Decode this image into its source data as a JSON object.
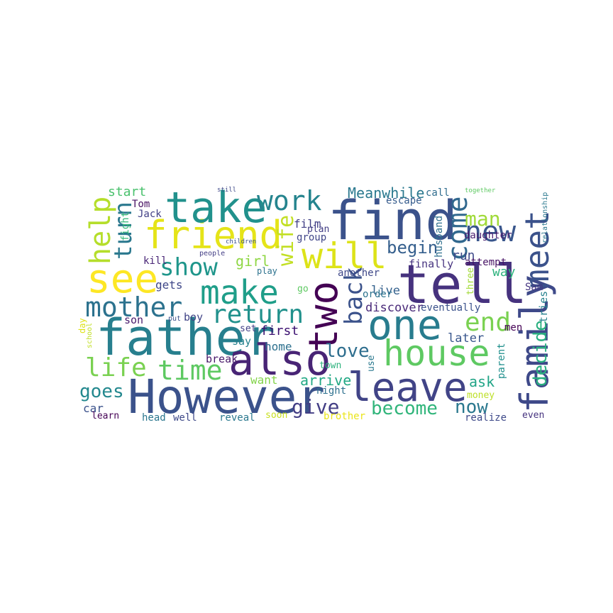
{
  "words": [
    {
      "text": "find",
      "color": "#3b528b"
    },
    {
      "text": "tell",
      "color": "#46327e"
    },
    {
      "text": "father",
      "color": "#277f8e"
    },
    {
      "text": "However",
      "color": "#3b528b"
    },
    {
      "text": "friend",
      "color": "#e5e419"
    },
    {
      "text": "take",
      "color": "#21918c"
    },
    {
      "text": "family",
      "color": "#3e4989"
    },
    {
      "text": "one",
      "color": "#287c8e"
    },
    {
      "text": "leave",
      "color": "#414487"
    },
    {
      "text": "also",
      "color": "#482475"
    },
    {
      "text": "house",
      "color": "#5ec962"
    },
    {
      "text": "two",
      "color": "#440154"
    },
    {
      "text": "see",
      "color": "#fde725"
    },
    {
      "text": "make",
      "color": "#1f9e89"
    },
    {
      "text": "will",
      "color": "#dde318"
    },
    {
      "text": "meet",
      "color": "#3b528b"
    },
    {
      "text": "mother",
      "color": "#2c728e"
    },
    {
      "text": "return",
      "color": "#21918c"
    },
    {
      "text": "help",
      "color": "#b5de2b"
    },
    {
      "text": "come",
      "color": "#31688e"
    },
    {
      "text": "new",
      "color": "#39568c"
    },
    {
      "text": "work",
      "color": "#25848e"
    },
    {
      "text": "turn",
      "color": "#2a788e"
    },
    {
      "text": "time",
      "color": "#5ec962"
    },
    {
      "text": "show",
      "color": "#1f968b"
    },
    {
      "text": "back",
      "color": "#3b528b"
    },
    {
      "text": "end",
      "color": "#7ad151"
    },
    {
      "text": "life",
      "color": "#7ad151"
    },
    {
      "text": "give",
      "color": "#433e85"
    },
    {
      "text": "love",
      "color": "#2e6e8e"
    },
    {
      "text": "decide",
      "color": "#29af7f"
    },
    {
      "text": "become",
      "color": "#31b57b"
    },
    {
      "text": "goes",
      "color": "#23888e"
    },
    {
      "text": "man",
      "color": "#a0da39"
    },
    {
      "text": "wife",
      "color": "#c2df23"
    },
    {
      "text": "begin",
      "color": "#355f8d"
    },
    {
      "text": "now",
      "color": "#2a788e"
    },
    {
      "text": "Meanwhile",
      "color": "#2a788e"
    },
    {
      "text": "girl",
      "color": "#8fd744"
    },
    {
      "text": "first",
      "color": "#3b0f70"
    },
    {
      "text": "arrive",
      "color": "#22a884"
    },
    {
      "text": "discover",
      "color": "#482878"
    },
    {
      "text": "start",
      "color": "#4ac16d"
    },
    {
      "text": "ask",
      "color": "#20a486"
    },
    {
      "text": "run",
      "color": "#3e4a89"
    },
    {
      "text": "later",
      "color": "#39568c"
    },
    {
      "text": "live",
      "color": "#34618d"
    },
    {
      "text": "home",
      "color": "#2d708e"
    },
    {
      "text": "want",
      "color": "#84d44b"
    },
    {
      "text": "film",
      "color": "#424086"
    },
    {
      "text": "way",
      "color": "#2db27d"
    },
    {
      "text": "finally",
      "color": "#46337f"
    },
    {
      "text": "eventually",
      "color": "#3b528b"
    },
    {
      "text": "escape",
      "color": "#365c8d"
    },
    {
      "text": "gets",
      "color": "#3f4788"
    },
    {
      "text": "car",
      "color": "#3b528b"
    },
    {
      "text": "son",
      "color": "#481b6d"
    },
    {
      "text": "boy",
      "color": "#414487"
    },
    {
      "text": "break",
      "color": "#48186a"
    },
    {
      "text": "say",
      "color": "#26828e"
    },
    {
      "text": "tries",
      "color": "#26828e"
    },
    {
      "text": "parent",
      "color": "#21908d"
    },
    {
      "text": "call",
      "color": "#2f6c8e"
    },
    {
      "text": "Tom",
      "color": "#471063"
    },
    {
      "text": "Jack",
      "color": "#424086"
    },
    {
      "text": "kill",
      "color": "#482576"
    },
    {
      "text": "husband",
      "color": "#2e6f8e"
    },
    {
      "text": "plan",
      "color": "#433e85"
    },
    {
      "text": "group",
      "color": "#404688"
    },
    {
      "text": "daughter",
      "color": "#481c6e"
    },
    {
      "text": "attempt",
      "color": "#471365"
    },
    {
      "text": "another",
      "color": "#3f4889"
    },
    {
      "text": "order",
      "color": "#2c738e"
    },
    {
      "text": "Sam",
      "color": "#453581"
    },
    {
      "text": "men",
      "color": "#440154"
    },
    {
      "text": "night",
      "color": "#2d708e"
    },
    {
      "text": "town",
      "color": "#2db27d"
    },
    {
      "text": "use",
      "color": "#2a788e"
    },
    {
      "text": "money",
      "color": "#bddf26"
    },
    {
      "text": "learn",
      "color": "#440154"
    },
    {
      "text": "head",
      "color": "#2a768e"
    },
    {
      "text": "well",
      "color": "#3e4989"
    },
    {
      "text": "reveal",
      "color": "#2a788e"
    },
    {
      "text": "soon",
      "color": "#c8e020"
    },
    {
      "text": "brother",
      "color": "#eae51a"
    },
    {
      "text": "realize",
      "color": "#3e4989"
    },
    {
      "text": "even",
      "color": "#46337f"
    },
    {
      "text": "set",
      "color": "#424086"
    },
    {
      "text": "go",
      "color": "#5ec962"
    },
    {
      "text": "play",
      "color": "#2c728e"
    },
    {
      "text": "three",
      "color": "#a2da37"
    },
    {
      "text": "fight",
      "color": "#35b779"
    },
    {
      "text": "day",
      "color": "#dde318"
    },
    {
      "text": "school",
      "color": "#c0df25"
    },
    {
      "text": "people",
      "color": "#433e85"
    },
    {
      "text": "put",
      "color": "#3b528b"
    },
    {
      "text": "still",
      "color": "#3e4989"
    },
    {
      "text": "children",
      "color": "#3b528b"
    },
    {
      "text": "together",
      "color": "#5ec962"
    },
    {
      "text": "relationship",
      "color": "#2a788e"
    }
  ]
}
